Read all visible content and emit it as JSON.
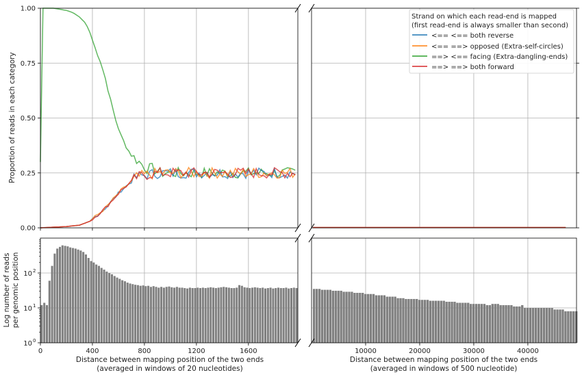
{
  "chart_data": [
    {
      "type": "line",
      "panel": "top-left",
      "ylabel": "Proportion of reads in each category",
      "xlim": [
        0,
        1980
      ],
      "ylim": [
        0,
        1
      ],
      "yticks": [
        0.0,
        0.25,
        0.5,
        0.75,
        1.0
      ],
      "ytick_labels": [
        "0.00",
        "0.25",
        "0.50",
        "0.75",
        "1.00"
      ],
      "xticks": [
        0,
        400,
        800,
        1200,
        1600
      ],
      "grid": true,
      "legend_placement": "upper-right",
      "legend_title": [
        "Strand on which each read-end is mapped",
        "(first read-end is always smaller than second)"
      ],
      "series": [
        {
          "name": "<== <== both reverse",
          "color": "#1f77b4"
        },
        {
          "name": "<== ==> opposed (Extra-self-circles)",
          "color": "#ff7f0e"
        },
        {
          "name": "==> <== facing (Extra-dangling-ends)",
          "color": "#2ca02c"
        },
        {
          "name": "==> ==> both forward",
          "color": "#d62728"
        }
      ],
      "facing_points": [
        [
          0,
          0.3
        ],
        [
          20,
          1.0
        ],
        [
          40,
          1.0
        ],
        [
          100,
          1.0
        ],
        [
          200,
          0.99
        ],
        [
          250,
          0.98
        ],
        [
          300,
          0.96
        ],
        [
          350,
          0.93
        ],
        [
          380,
          0.89
        ],
        [
          420,
          0.82
        ],
        [
          460,
          0.76
        ],
        [
          500,
          0.68
        ],
        [
          540,
          0.58
        ],
        [
          580,
          0.49
        ],
        [
          620,
          0.42
        ],
        [
          660,
          0.37
        ],
        [
          700,
          0.33
        ],
        [
          740,
          0.31
        ],
        [
          780,
          0.29
        ],
        [
          820,
          0.27
        ],
        [
          860,
          0.27
        ],
        [
          900,
          0.26
        ]
      ],
      "rising_points": [
        [
          0,
          0.0
        ],
        [
          100,
          0.003
        ],
        [
          200,
          0.006
        ],
        [
          300,
          0.012
        ],
        [
          380,
          0.03
        ],
        [
          440,
          0.06
        ],
        [
          500,
          0.09
        ],
        [
          560,
          0.13
        ],
        [
          620,
          0.17
        ],
        [
          680,
          0.2
        ],
        [
          740,
          0.23
        ],
        [
          800,
          0.24
        ],
        [
          860,
          0.245
        ],
        [
          920,
          0.25
        ]
      ],
      "plateau_level": 0.25
    },
    {
      "type": "line",
      "panel": "top-right",
      "xlim": [
        0,
        49000
      ],
      "ylim": [
        0,
        1
      ],
      "line_value": 0.0
    },
    {
      "type": "bar",
      "panel": "bottom-left",
      "ylabel": "Log number of reads\nper genomic position",
      "xlabel": "Distance between mapping position of the two ends\n(averaged in windows of 20 nucleotides)",
      "xlim": [
        0,
        1980
      ],
      "ylim": [
        1,
        1000
      ],
      "yscale": "log",
      "xticks": [
        0,
        400,
        800,
        1200,
        1600
      ],
      "xtick_labels": [
        "0",
        "400",
        "800",
        "1200",
        "1600"
      ],
      "yticks": [
        1,
        10,
        100
      ],
      "ytick_labels": [
        "10",
        "10",
        "10"
      ],
      "ytick_exponents": [
        "0",
        "1",
        "2"
      ],
      "bar_width": 20,
      "bar_color": "#808080",
      "x": [
        10,
        30,
        50,
        70,
        90,
        110,
        130,
        150,
        170,
        190,
        210,
        230,
        250,
        270,
        290,
        310,
        330,
        350,
        370,
        390,
        410,
        430,
        450,
        470,
        490,
        510,
        530,
        550,
        570,
        590,
        610,
        630,
        650,
        670,
        690,
        710,
        730,
        750,
        770,
        790,
        810,
        830,
        850,
        870,
        890,
        910,
        930,
        950,
        970,
        990,
        1010,
        1030,
        1050,
        1070,
        1090,
        1110,
        1130,
        1150,
        1170,
        1190,
        1210,
        1230,
        1250,
        1270,
        1290,
        1310,
        1330,
        1350,
        1370,
        1390,
        1410,
        1430,
        1450,
        1470,
        1490,
        1510,
        1530,
        1550,
        1570,
        1590,
        1610,
        1630,
        1650,
        1670,
        1690,
        1710,
        1730,
        1750,
        1770,
        1790,
        1810,
        1830,
        1850,
        1870,
        1890,
        1910,
        1930,
        1950,
        1970
      ],
      "values": [
        12,
        14,
        12,
        60,
        160,
        360,
        500,
        560,
        620,
        600,
        580,
        540,
        520,
        500,
        470,
        440,
        400,
        340,
        270,
        220,
        200,
        175,
        160,
        140,
        125,
        110,
        100,
        92,
        82,
        74,
        68,
        62,
        58,
        53,
        50,
        48,
        46,
        45,
        43,
        44,
        42,
        43,
        40,
        42,
        40,
        38,
        40,
        38,
        40,
        41,
        39,
        38,
        40,
        38,
        38,
        37,
        36,
        38,
        37,
        37,
        38,
        37,
        38,
        37,
        38,
        39,
        38,
        37,
        38,
        39,
        40,
        39,
        38,
        37,
        37,
        38,
        45,
        43,
        39,
        38,
        37,
        38,
        39,
        38,
        37,
        38,
        36,
        37,
        38,
        36,
        37,
        38,
        37,
        37,
        38,
        36,
        37,
        38,
        37
      ],
      "grid": true
    },
    {
      "type": "bar",
      "panel": "bottom-right",
      "xlabel": "Distance between mapping position of the two ends\n(averaged in windows of 500 nucleotide)",
      "xlim": [
        0,
        49000
      ],
      "ylim": [
        1,
        1000
      ],
      "yscale": "log",
      "xticks": [
        10000,
        20000,
        30000,
        40000
      ],
      "xtick_labels": [
        "10000",
        "20000",
        "30000",
        "40000"
      ],
      "bar_color": "#808080",
      "steps": [
        [
          250,
          1750,
          35
        ],
        [
          1750,
          3750,
          33
        ],
        [
          3750,
          5750,
          31
        ],
        [
          5750,
          7750,
          29
        ],
        [
          7750,
          9750,
          27
        ],
        [
          9750,
          11750,
          25
        ],
        [
          11750,
          13750,
          23
        ],
        [
          13750,
          15750,
          21
        ],
        [
          15750,
          17250,
          19
        ],
        [
          17250,
          19750,
          18
        ],
        [
          19750,
          21750,
          17
        ],
        [
          21750,
          24750,
          16
        ],
        [
          24750,
          26750,
          15
        ],
        [
          26750,
          29250,
          14
        ],
        [
          29250,
          32250,
          13
        ],
        [
          32250,
          33250,
          12
        ],
        [
          33250,
          34750,
          13
        ],
        [
          34750,
          37250,
          12
        ],
        [
          37250,
          38750,
          11
        ],
        [
          38750,
          39250,
          12
        ],
        [
          39250,
          41750,
          10
        ],
        [
          41750,
          44750,
          10
        ],
        [
          44750,
          46750,
          9
        ],
        [
          46750,
          49000,
          8
        ]
      ],
      "values": [
        35,
        34,
        33,
        32,
        31,
        30,
        29,
        28,
        27,
        26,
        25,
        24,
        23,
        22,
        21,
        20,
        19,
        18,
        17,
        16,
        16,
        15,
        15,
        14,
        14,
        13,
        13,
        12,
        12,
        12,
        11,
        11,
        10,
        10,
        10,
        10,
        9,
        9,
        8,
        8
      ],
      "grid": true
    }
  ]
}
